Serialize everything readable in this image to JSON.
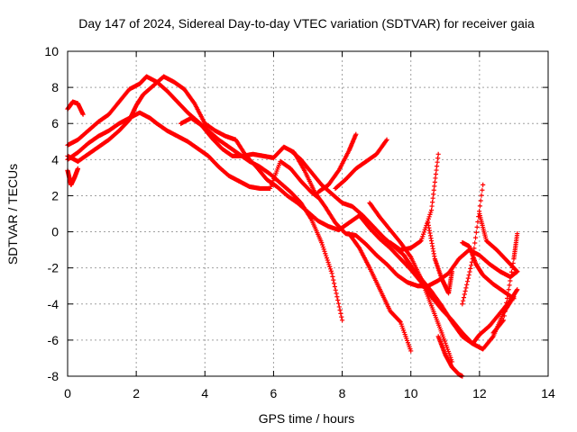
{
  "chart_data": {
    "type": "scatter",
    "title": "Day 147 of 2024, Sidereal Day-to-day VTEC variation (SDTVAR) for receiver gaia",
    "xlabel": "GPS time / hours",
    "ylabel": "SDTVAR / TECUs",
    "xlim": [
      0,
      14
    ],
    "ylim": [
      -8,
      10
    ],
    "xticks": [
      0,
      2,
      4,
      6,
      8,
      10,
      12,
      14
    ],
    "yticks": [
      -8,
      -6,
      -4,
      -2,
      0,
      2,
      4,
      6,
      8,
      10
    ],
    "grid": true,
    "marker": "+",
    "color": "#ff0000",
    "series": [
      {
        "x": [
          0.0,
          0.15,
          0.3,
          0.45
        ],
        "y": [
          6.8,
          7.2,
          7.1,
          6.5
        ]
      },
      {
        "x": [
          0.0,
          0.1,
          0.2,
          0.3
        ],
        "y": [
          3.4,
          2.6,
          3.0,
          3.5
        ]
      },
      {
        "x": [
          0.0,
          0.3,
          0.6,
          0.9,
          1.2,
          1.5,
          1.8,
          2.1,
          2.4,
          2.6,
          2.9,
          3.2,
          3.5,
          3.8,
          4.1,
          4.4,
          4.7,
          5.0,
          5.3,
          5.6,
          5.9,
          6.2,
          6.5,
          6.8,
          7.1,
          7.3
        ],
        "y": [
          4.0,
          4.4,
          4.9,
          5.3,
          5.6,
          6.0,
          6.3,
          6.6,
          6.3,
          6.0,
          5.6,
          5.3,
          5.0,
          4.6,
          4.2,
          3.6,
          3.1,
          2.8,
          2.5,
          2.4,
          2.4,
          3.9,
          3.5,
          2.8,
          2.2,
          1.9
        ]
      },
      {
        "x": [
          0.0,
          0.3,
          0.6,
          0.9,
          1.2,
          1.5,
          1.8,
          2.0,
          2.2,
          2.5,
          2.8,
          3.1,
          3.4,
          3.7,
          4.0,
          4.3,
          4.6,
          4.9,
          5.2,
          5.5,
          5.8,
          6.1,
          6.4,
          6.7,
          7.0,
          7.3,
          7.6,
          7.9,
          8.2,
          8.5,
          8.8,
          9.1,
          9.4,
          9.7,
          10.0,
          10.3,
          10.6,
          10.9,
          11.2,
          11.5,
          11.8,
          12.1,
          12.4,
          12.7,
          13.0
        ],
        "y": [
          4.2,
          3.9,
          4.3,
          4.7,
          5.1,
          5.6,
          6.2,
          7.0,
          7.6,
          8.1,
          8.6,
          8.3,
          7.9,
          7.1,
          6.0,
          5.6,
          5.3,
          5.1,
          4.2,
          3.6,
          2.9,
          2.5,
          2.0,
          1.6,
          1.1,
          0.6,
          0.3,
          0.1,
          0.5,
          0.9,
          0.2,
          -0.4,
          -0.9,
          -1.5,
          -2.1,
          -2.8,
          -3.6,
          -4.3,
          -4.9,
          -5.6,
          -6.2,
          -6.5,
          -5.8,
          -4.5,
          -3.6
        ]
      },
      {
        "x": [
          0.0,
          0.3,
          0.6,
          0.9,
          1.2,
          1.5,
          1.8,
          2.1,
          2.3,
          2.6,
          2.9,
          3.2,
          3.5,
          3.8,
          4.1,
          4.4,
          4.7,
          5.0,
          5.3,
          5.6,
          5.9,
          6.2,
          6.5,
          6.8,
          7.1,
          7.4,
          7.7,
          8.0
        ],
        "y": [
          4.8,
          5.1,
          5.6,
          6.1,
          6.5,
          7.2,
          7.9,
          8.2,
          8.6,
          8.3,
          7.8,
          7.2,
          6.6,
          6.1,
          5.6,
          5.1,
          4.7,
          4.3,
          3.9,
          3.6,
          3.2,
          2.7,
          2.2,
          1.6,
          0.7,
          -0.6,
          -2.3,
          -4.9
        ]
      },
      {
        "x": [
          3.3,
          3.6,
          3.9,
          4.2,
          4.5,
          4.8,
          5.1,
          5.4,
          5.7,
          6.0,
          6.3,
          6.6,
          6.9,
          7.2,
          7.5,
          7.8,
          8.1,
          8.4,
          8.7,
          9.0,
          9.3,
          9.6,
          9.9,
          10.2,
          10.5,
          10.8,
          11.1,
          11.4,
          11.7,
          12.0,
          12.3,
          12.6,
          12.9,
          13.1
        ],
        "y": [
          6.0,
          6.3,
          5.9,
          5.2,
          4.6,
          4.2,
          4.2,
          4.3,
          4.2,
          4.1,
          4.7,
          4.4,
          3.4,
          2.2,
          1.4,
          0.5,
          -0.1,
          -0.2,
          -0.7,
          -1.3,
          -1.8,
          -2.4,
          -2.8,
          -3.0,
          -3.0,
          -2.7,
          -2.3,
          -1.5,
          -1.0,
          -1.3,
          -1.8,
          -2.2,
          -2.5,
          -2.2
        ]
      },
      {
        "x": [
          6.5,
          6.8,
          7.1,
          7.4,
          7.7,
          8.0,
          8.3,
          8.6,
          8.9,
          9.2,
          9.5,
          9.8,
          10.0,
          10.3,
          10.6,
          10.9,
          11.2,
          11.5,
          11.8,
          12.0,
          12.3,
          12.6,
          12.9,
          13.1
        ],
        "y": [
          4.5,
          4.0,
          3.3,
          2.6,
          2.1,
          1.6,
          1.4,
          0.9,
          0.3,
          -0.3,
          -0.8,
          -1.3,
          -1.9,
          -2.6,
          -3.3,
          -4.1,
          -5.0,
          -5.8,
          -6.2,
          -5.7,
          -5.2,
          -4.5,
          -3.8,
          -3.2
        ]
      },
      {
        "x": [
          7.3,
          7.6,
          7.9,
          8.2,
          8.4
        ],
        "y": [
          2.2,
          2.6,
          3.4,
          4.5,
          5.4
        ]
      },
      {
        "x": [
          7.8,
          8.1,
          8.4,
          8.7,
          9.0,
          9.3
        ],
        "y": [
          2.4,
          2.9,
          3.5,
          3.9,
          4.3,
          5.1
        ]
      },
      {
        "x": [
          8.2,
          8.5,
          8.8,
          9.1,
          9.4,
          9.7,
          10.0
        ],
        "y": [
          -0.1,
          -0.9,
          -2.0,
          -3.2,
          -4.4,
          -5.0,
          -6.6
        ]
      },
      {
        "x": [
          8.8,
          9.1,
          9.4,
          9.7,
          10.0,
          10.3,
          10.6,
          10.9,
          11.2
        ],
        "y": [
          1.6,
          0.8,
          0.1,
          -0.6,
          -1.4,
          -2.6,
          -4.1,
          -5.6,
          -7.2
        ]
      },
      {
        "x": [
          9.4,
          9.7,
          10.0,
          10.3,
          10.6,
          10.8
        ],
        "y": [
          -0.6,
          -1.0,
          -0.9,
          -0.5,
          1.2,
          4.3
        ]
      },
      {
        "x": [
          10.5,
          10.7,
          10.9,
          11.0,
          11.1,
          11.2
        ],
        "y": [
          0.5,
          -1.5,
          -2.6,
          -3.0,
          -3.4,
          -2.2
        ]
      },
      {
        "x": [
          10.8,
          11.0,
          11.2,
          11.4,
          11.5
        ],
        "y": [
          -5.8,
          -6.8,
          -7.5,
          -7.9,
          -8.0
        ]
      },
      {
        "x": [
          11.5,
          11.7,
          11.9,
          12.1,
          12.4,
          12.7,
          13.0
        ],
        "y": [
          -0.6,
          -0.8,
          -1.8,
          -2.4,
          -2.9,
          -3.3,
          -3.7
        ]
      },
      {
        "x": [
          11.5,
          11.8,
          12.1
        ],
        "y": [
          -4.0,
          -1.5,
          2.6
        ]
      },
      {
        "x": [
          12.0,
          12.2,
          12.5,
          12.8,
          13.1
        ],
        "y": [
          1.0,
          -0.5,
          -1.0,
          -1.6,
          -2.2
        ]
      },
      {
        "x": [
          12.4,
          12.7,
          13.0,
          13.1
        ],
        "y": [
          -5.6,
          -4.9,
          -1.5,
          -0.1
        ]
      }
    ]
  }
}
